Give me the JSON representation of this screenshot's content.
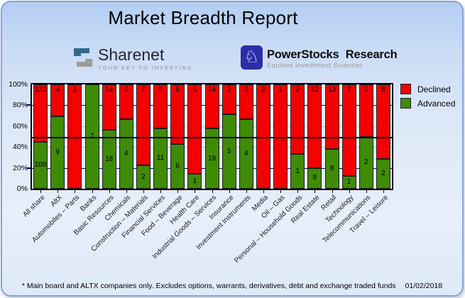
{
  "title": "Market Breadth Report",
  "logos": {
    "sharenet": {
      "name": "Sharenet",
      "tagline": "YOUR KEY TO INVESTING"
    },
    "powerstocks": {
      "name": "PowerStocks Research",
      "tagline": "Equities Investment Sciences",
      "knight_icon": "♘"
    }
  },
  "footer": {
    "note": "* Main board and ALTX companies only. Excludes options, warrants, derivatives, debt and exchange traded funds",
    "date": "01/02/2018"
  },
  "chart_data": {
    "type": "bar",
    "stacked": true,
    "percent_normalized": true,
    "title": "Market Breadth Report",
    "categories": [
      "All share",
      "AltX",
      "Automobiles – Parts",
      "Banks",
      "Basic Resources",
      "Chemicals",
      "Construction – Materials",
      "Financial Services",
      "Food – Beverage",
      "Health Care",
      "Industrial Goods – Services",
      "Insurance",
      "Investment Instruments",
      "Media",
      "Oil – Gas",
      "Personal – Household Goods",
      "Real Estate",
      "Retail",
      "Technology",
      "Telecommunications",
      "Travel – Leisure"
    ],
    "series": [
      {
        "name": "Declined",
        "color": "#f40000",
        "values": [
          132,
          4,
          1,
          0,
          14,
          2,
          7,
          8,
          8,
          6,
          14,
          2,
          2,
          2,
          1,
          2,
          32,
          13,
          7,
          2,
          5
        ]
      },
      {
        "name": "Advanced",
        "color": "#3f8b06",
        "values": [
          108,
          9,
          0,
          7,
          18,
          4,
          2,
          11,
          6,
          1,
          19,
          5,
          4,
          0,
          0,
          1,
          8,
          8,
          1,
          2,
          2
        ]
      }
    ],
    "ylim": [
      0,
      100
    ],
    "yticks": [
      {
        "label": "100%",
        "percent": 100
      },
      {
        "label": "80%",
        "percent": 80
      },
      {
        "label": "60%",
        "percent": 60
      },
      {
        "label": "40%",
        "percent": 40
      },
      {
        "label": "20%",
        "percent": 20
      },
      {
        "label": "0%",
        "percent": 0
      }
    ],
    "gridlines": [
      {
        "percent": 80,
        "color": "#000080"
      },
      {
        "percent": 60,
        "color": "#bdbdbd"
      },
      {
        "percent": 40,
        "color": "#bdbdbd"
      },
      {
        "percent": 20,
        "color": "#000080"
      }
    ],
    "reference_line_percent": 49.5,
    "legend_position": "top-right",
    "colors": {
      "plot_bg": "#e9effa",
      "bar_border": "#1c1c1c",
      "reference": "#000000"
    }
  }
}
